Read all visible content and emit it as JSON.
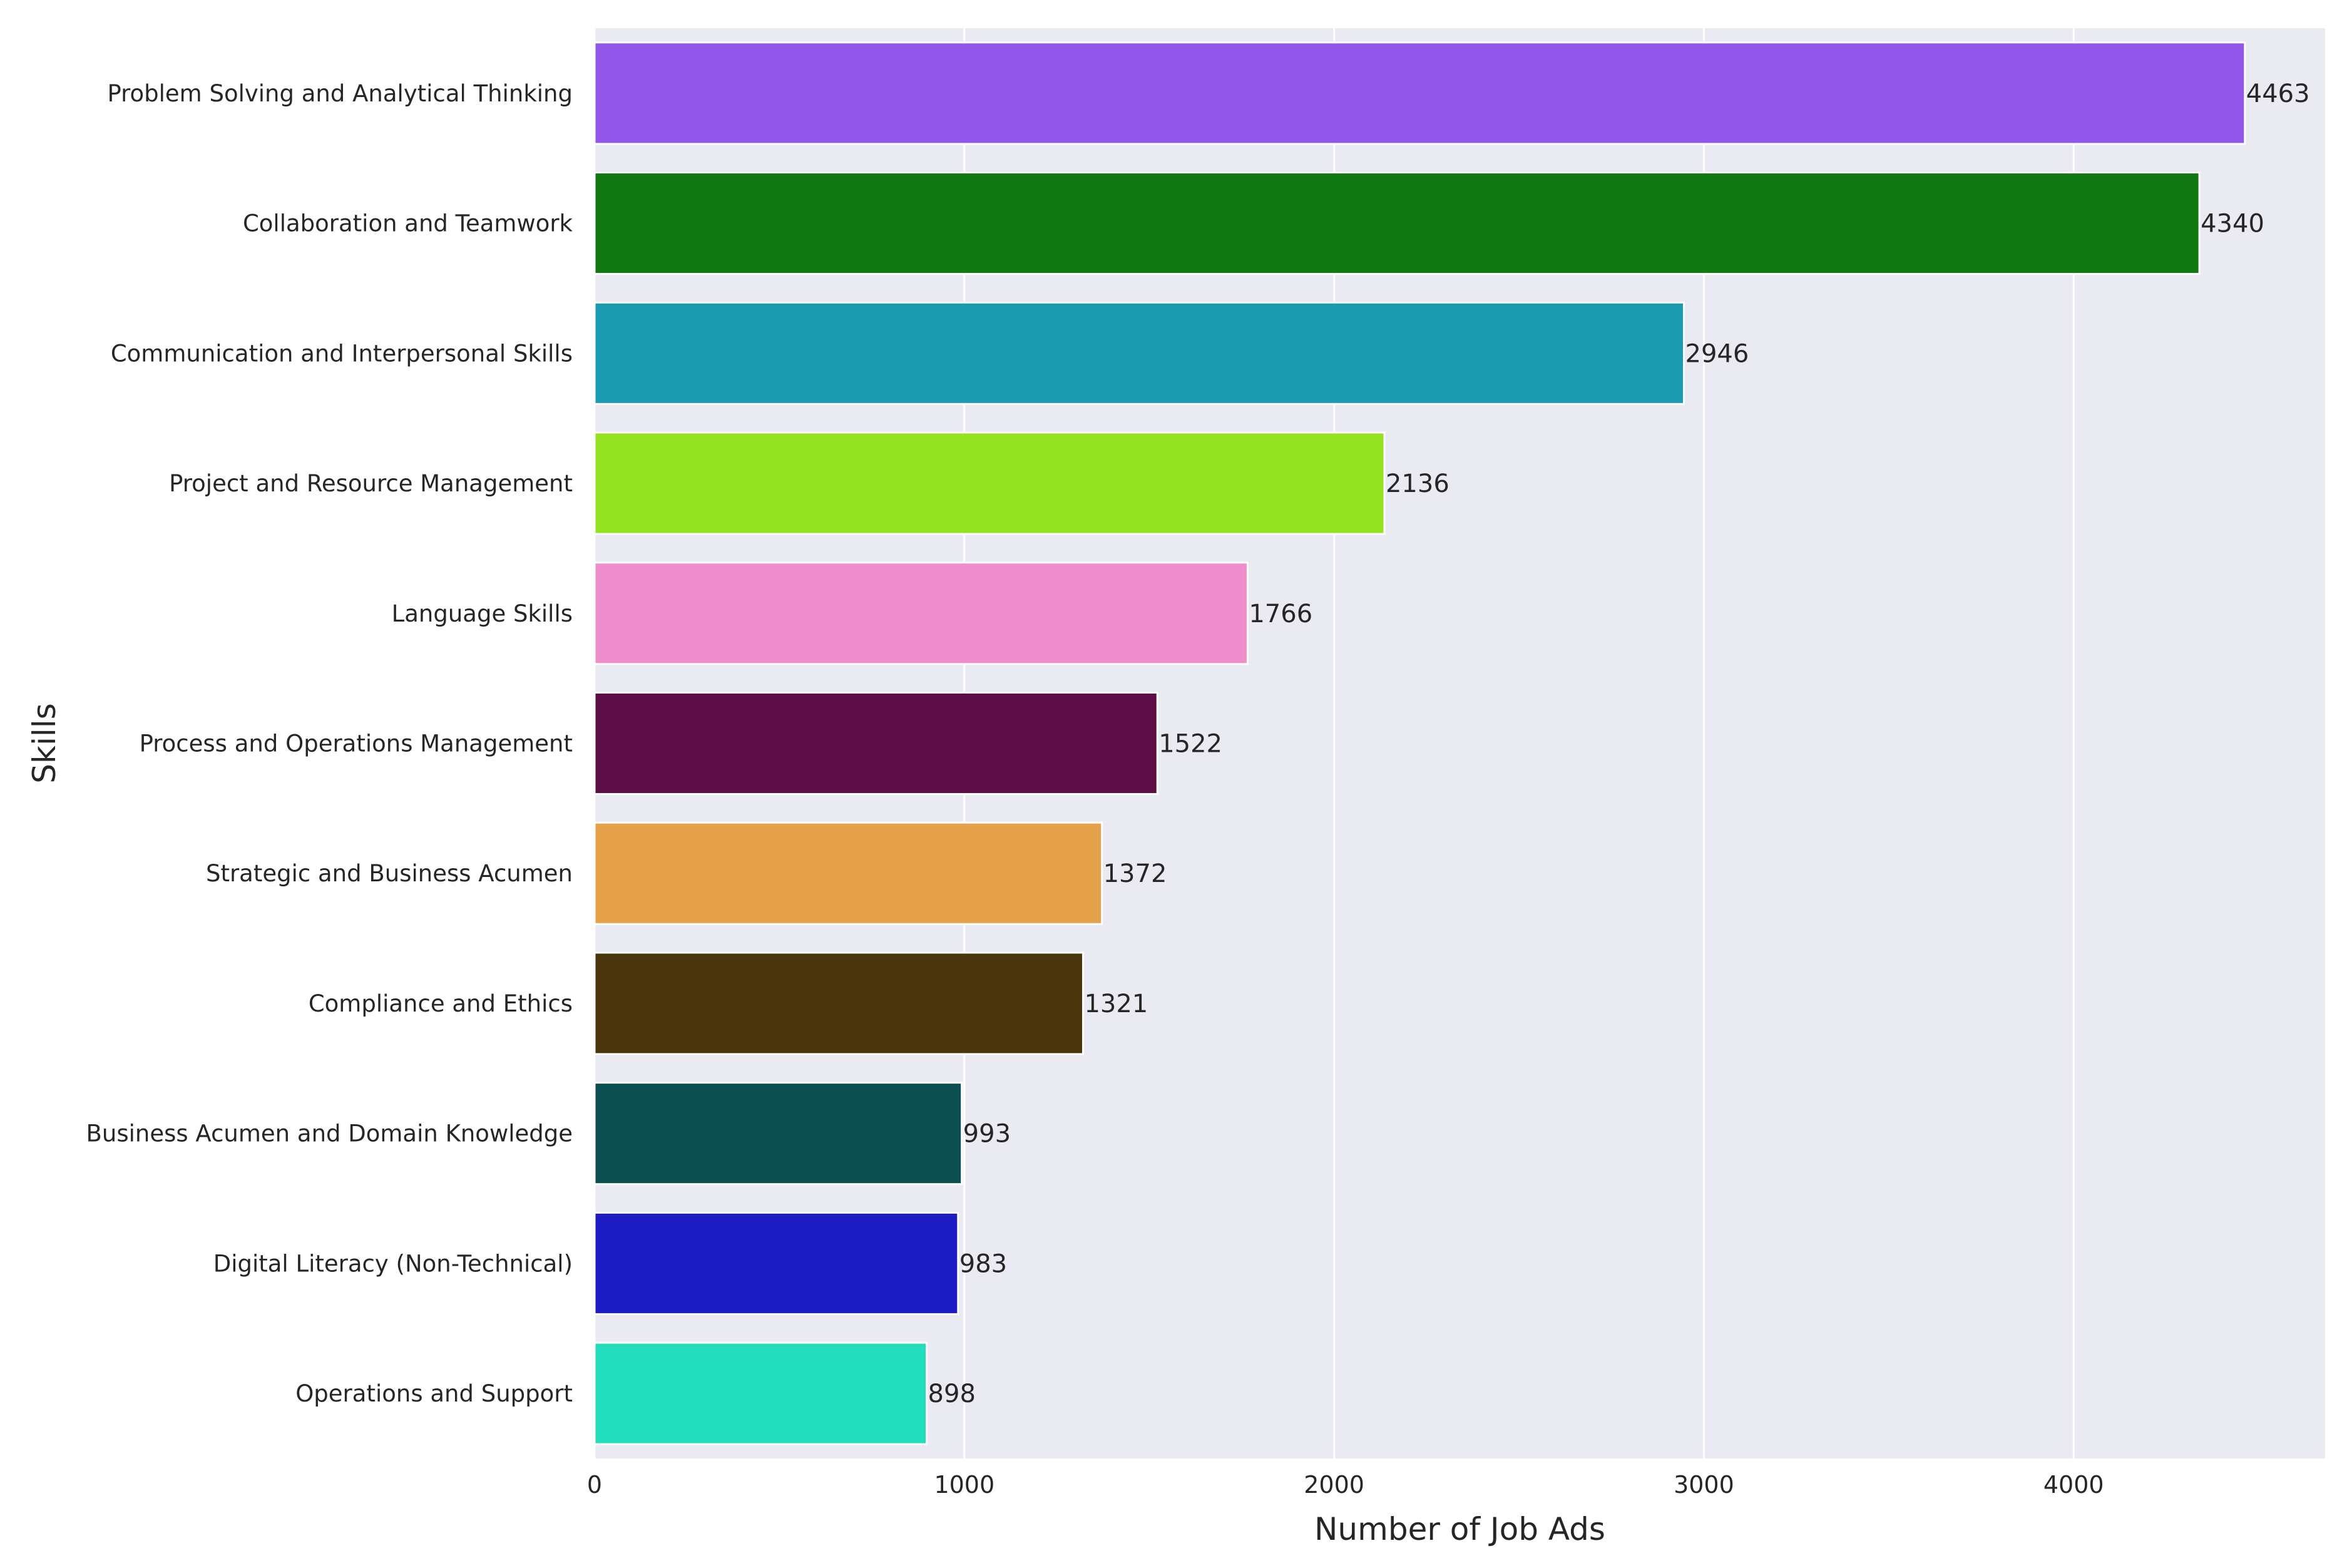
{
  "chart_data": {
    "type": "bar",
    "orientation": "horizontal",
    "xlabel": "Number of Job Ads",
    "ylabel": "Skills",
    "xlim": [
      0,
      4680
    ],
    "xticks": [
      0,
      1000,
      2000,
      3000,
      4000
    ],
    "grid": true,
    "background": "#eaeaf2",
    "categories": [
      "Problem Solving and Analytical Thinking",
      "Collaboration and Teamwork",
      "Communication and Interpersonal Skills",
      "Project and Resource Management",
      "Language Skills",
      "Process and Operations Management",
      "Strategic and Business Acumen",
      "Compliance and Ethics",
      "Business Acumen and Domain Knowledge",
      "Digital Literacy (Non-Technical)",
      "Operations and Support"
    ],
    "values": [
      4463,
      4340,
      2946,
      2136,
      1766,
      1522,
      1372,
      1321,
      993,
      983,
      898
    ],
    "colors": [
      "#9056e9",
      "#127812",
      "#1b9bb0",
      "#93e120",
      "#ee8dcc",
      "#5e0e47",
      "#e6a24a",
      "#4a360d",
      "#0c4f50",
      "#1e1cc5",
      "#22ddbb"
    ]
  }
}
